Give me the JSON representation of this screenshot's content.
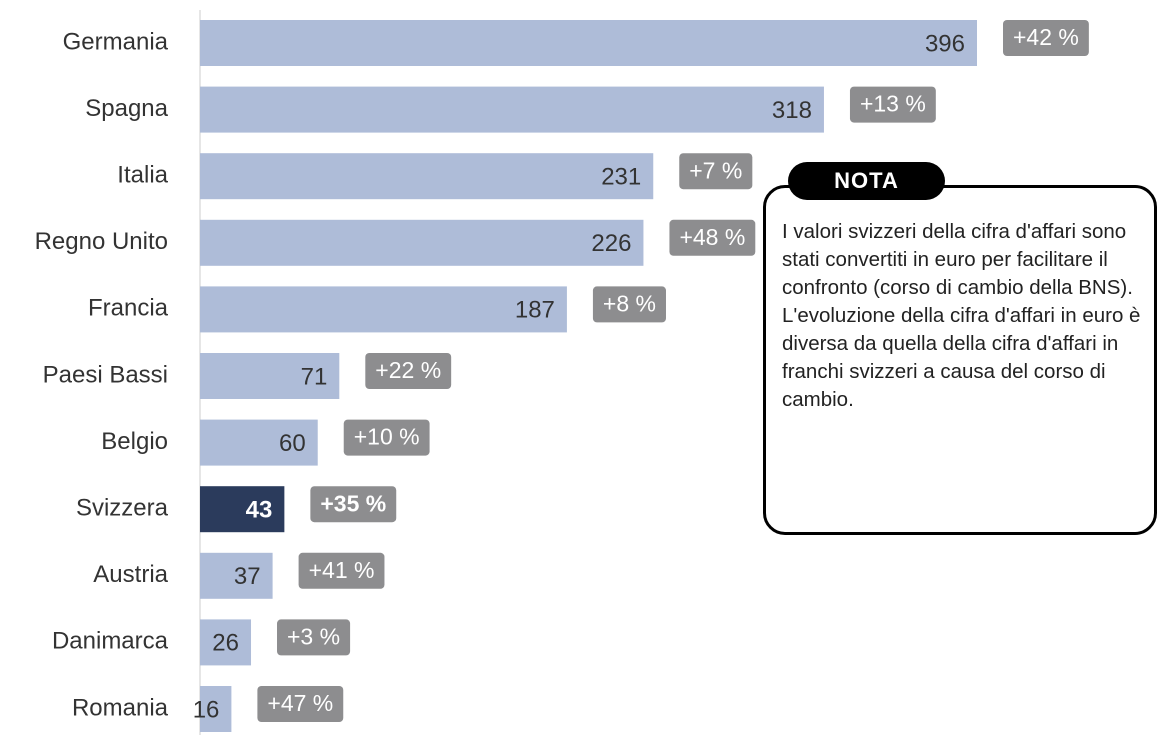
{
  "chart_data": {
    "type": "hbar",
    "categories": [
      "Germania",
      "Spagna",
      "Italia",
      "Regno Unito",
      "Francia",
      "Paesi Bassi",
      "Belgio",
      "Svizzera",
      "Austria",
      "Danimarca",
      "Romania"
    ],
    "values": [
      396,
      318,
      231,
      226,
      187,
      71,
      60,
      43,
      37,
      26,
      16
    ],
    "colors": [
      "#aebcd8",
      "#aebcd8",
      "#aebcd8",
      "#aebcd8",
      "#aebcd8",
      "#aebcd8",
      "#aebcd8",
      "#2b3b5c",
      "#aebcd8",
      "#aebcd8",
      "#aebcd8"
    ],
    "annotations": [
      "+42 %",
      "+13 %",
      "+7 %",
      "+48 %",
      "+8 %",
      "+22 %",
      "+10 %",
      "+35 %",
      "+41 %",
      "+3 %",
      "+47 %"
    ],
    "highlight": "Svizzera",
    "note_title": "NOTA",
    "note": "I valori svizzeri della cifra d'affari sono stati convertiti in euro per facilitare il confronto (corso di cambio della BNS). L'evoluzione della cifra d'affari in euro è diversa da quella della cifra d'affari in franchi svizzeri a causa del corso di cambio."
  }
}
